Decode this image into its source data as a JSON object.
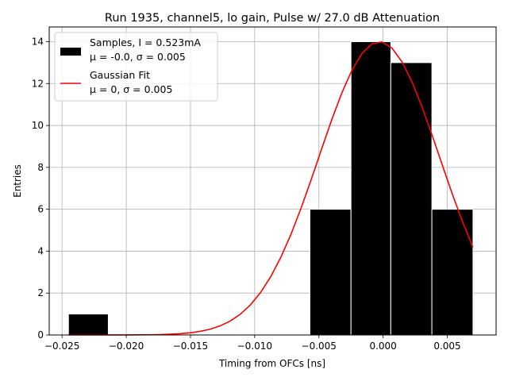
{
  "chart_data": {
    "type": "bar",
    "title": "Run 1935, channel5, lo gain, Pulse w/ 27.0 dB Attenuation",
    "xlabel": "Timing from OFCs [ns]",
    "ylabel": "Entries",
    "xlim": [
      -0.026,
      0.0088
    ],
    "ylim": [
      0,
      14.7
    ],
    "xticks": [
      -0.025,
      -0.02,
      -0.015,
      -0.01,
      -0.005,
      0.0,
      0.005
    ],
    "xtick_labels": [
      "−0.025",
      "−0.020",
      "−0.015",
      "−0.010",
      "−0.005",
      "0.000",
      "0.005"
    ],
    "yticks": [
      0,
      2,
      4,
      6,
      8,
      10,
      12,
      14
    ],
    "ytick_labels": [
      "0",
      "2",
      "4",
      "6",
      "8",
      "10",
      "12",
      "14"
    ],
    "grid": true,
    "legend_position": "top-left",
    "histogram": {
      "name": "Samples, I = 0.523mA",
      "stats_label": "μ = -0.0, σ = 0.005",
      "color": "#000000",
      "edge_color": "#ffffff",
      "bins": [
        {
          "x0": -0.0245,
          "x1": -0.0214,
          "count": 1
        },
        {
          "x0": -0.0057,
          "x1": -0.0025,
          "count": 6
        },
        {
          "x0": -0.0025,
          "x1": 0.0006,
          "count": 14
        },
        {
          "x0": 0.0006,
          "x1": 0.0038,
          "count": 13
        },
        {
          "x0": 0.0038,
          "x1": 0.007,
          "count": 6
        }
      ]
    },
    "fit": {
      "name": "Gaussian Fit",
      "stats_label": "μ = 0, σ = 0.005",
      "color": "#ff0000",
      "amplitude": 14.0,
      "mu": -0.0003,
      "sigma": 0.0047,
      "x_range": [
        -0.0245,
        0.007
      ]
    }
  }
}
